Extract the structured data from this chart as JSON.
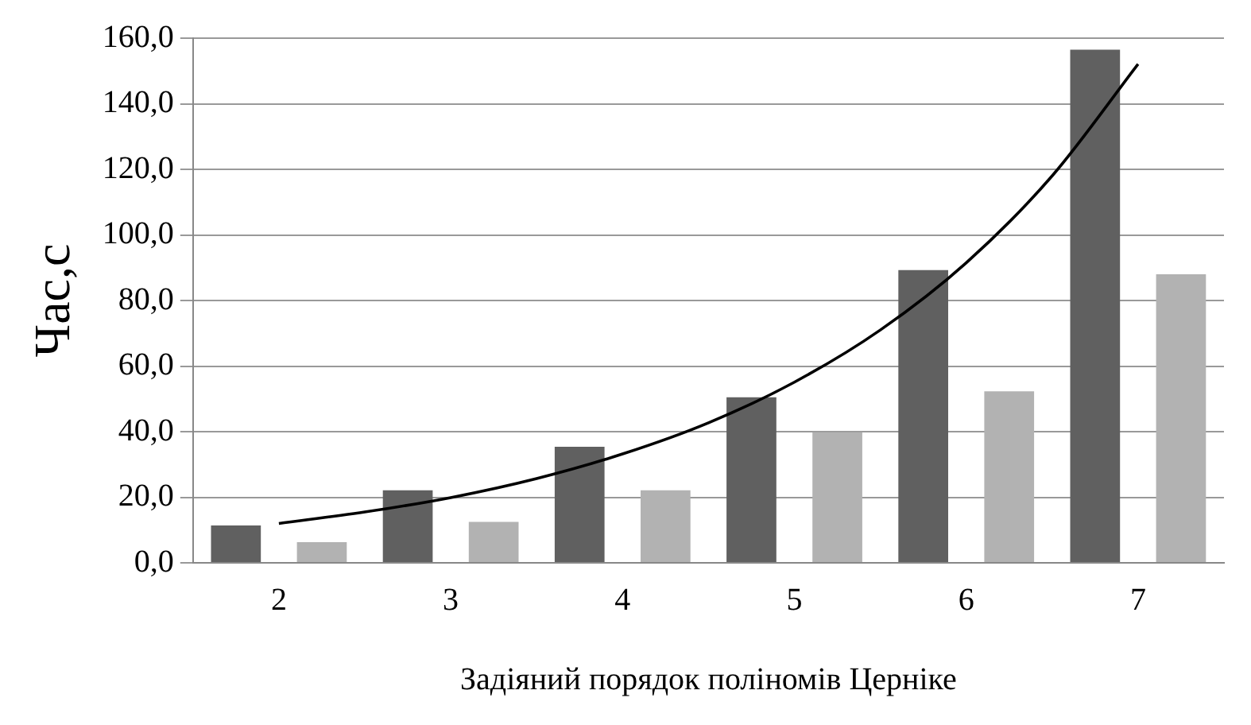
{
  "chart_data": {
    "type": "bar",
    "xlabel": "Задіяний порядок поліномів Церніке",
    "ylabel": "Час,с",
    "x": [
      2,
      3,
      4,
      5,
      6,
      7
    ],
    "xlim": [
      1.5,
      7.5
    ],
    "xticks": [
      2,
      3,
      4,
      5,
      6,
      7
    ],
    "ylim": [
      0,
      160
    ],
    "yticks": [
      {
        "value": 0,
        "label": "0,0"
      },
      {
        "value": 20,
        "label": "20,0"
      },
      {
        "value": 40,
        "label": "40,0"
      },
      {
        "value": 60,
        "label": "60,0"
      },
      {
        "value": 80,
        "label": "80,0"
      },
      {
        "value": 100,
        "label": "100,0"
      },
      {
        "value": 120,
        "label": "120,0"
      },
      {
        "value": 140,
        "label": "140,0"
      },
      {
        "value": 160,
        "label": "160,0"
      }
    ],
    "grid": "y",
    "legend": false,
    "series": [
      {
        "color": "#606060",
        "values": [
          11.4,
          22.1,
          35.4,
          50.5,
          89.3,
          156.5
        ]
      },
      {
        "color": "#b2b2b2",
        "values": [
          6.3,
          12.5,
          22.1,
          39.8,
          52.3,
          88
        ]
      },
      {
        "type": "line",
        "color": "#000000",
        "marker": "none",
        "x": [
          2,
          2.5,
          3,
          3.5,
          4,
          4.5,
          5,
          5.5,
          6,
          6.5,
          7
        ],
        "values": [
          12,
          15.5,
          19.9,
          25.7,
          33.2,
          42.7,
          55.1,
          71,
          91.5,
          118,
          152.1
        ]
      }
    ]
  }
}
